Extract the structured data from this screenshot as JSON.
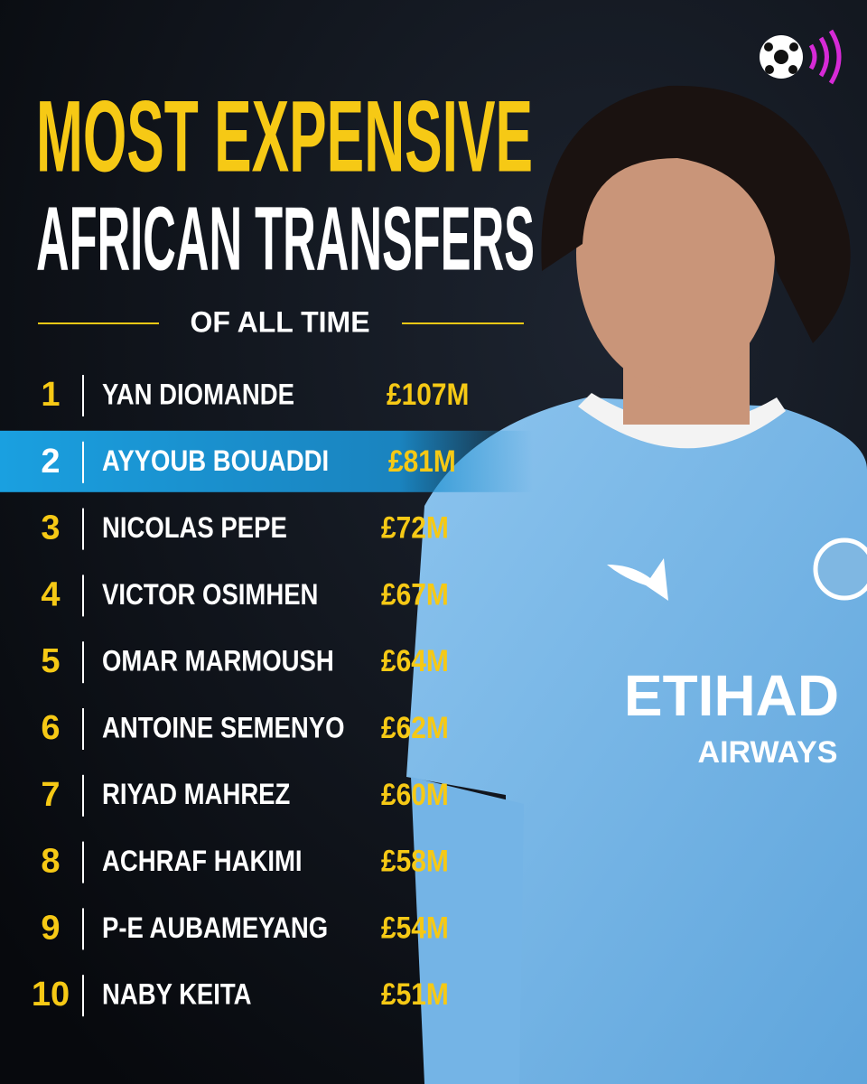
{
  "header": {
    "title_line_1": "MOST EXPENSIVE",
    "title_line_2": "AFRICAN TRANSFERS",
    "subtitle": "OF ALL TIME"
  },
  "ranking": {
    "highlighted_rank": 2,
    "rows": [
      {
        "rank": 1,
        "name": "YAN DIOMANDE",
        "fee": "£107M"
      },
      {
        "rank": 2,
        "name": "AYYOUB BOUADDI",
        "fee": "£81M"
      },
      {
        "rank": 3,
        "name": "NICOLAS PEPE",
        "fee": "£72M"
      },
      {
        "rank": 4,
        "name": "VICTOR OSIMHEN",
        "fee": "£67M"
      },
      {
        "rank": 5,
        "name": "OMAR MARMOUSH",
        "fee": "£64M"
      },
      {
        "rank": 6,
        "name": "ANTOINE SEMENYO",
        "fee": "£62M"
      },
      {
        "rank": 7,
        "name": "RIYAD MAHREZ",
        "fee": "£60M"
      },
      {
        "rank": 8,
        "name": "ACHRAF HAKIMI",
        "fee": "£58M"
      },
      {
        "rank": 9,
        "name": "P-E AUBAMEYANG",
        "fee": "£54M"
      },
      {
        "rank": 10,
        "name": "NABY KEITA",
        "fee": "£51M"
      }
    ]
  },
  "shirt": {
    "sponsor": "ETIHAD",
    "sponsor_sub": "AIRWAYS"
  }
}
